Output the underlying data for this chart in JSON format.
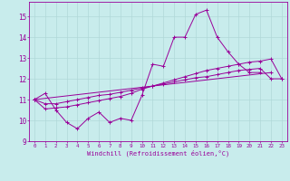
{
  "xlabel": "Windchill (Refroidissement éolien,°C)",
  "background_color": "#c8ecec",
  "grid_color": "#b0d8d8",
  "line_color": "#990099",
  "xlim": [
    -0.5,
    23.5
  ],
  "ylim": [
    9,
    15.7
  ],
  "yticks": [
    9,
    10,
    11,
    12,
    13,
    14,
    15
  ],
  "xticks": [
    0,
    1,
    2,
    3,
    4,
    5,
    6,
    7,
    8,
    9,
    10,
    11,
    12,
    13,
    14,
    15,
    16,
    17,
    18,
    19,
    20,
    21,
    22,
    23
  ],
  "series_main": [
    0,
    1,
    2,
    3,
    4,
    5,
    6,
    7,
    8,
    9,
    10,
    11,
    12,
    13,
    14,
    15,
    16,
    17,
    18,
    19,
    20,
    21
  ],
  "y_main": [
    11.0,
    11.3,
    10.5,
    9.9,
    9.6,
    10.1,
    10.4,
    9.9,
    10.1,
    10.0,
    11.2,
    12.7,
    12.6,
    14.0,
    14.0,
    15.1,
    15.3,
    14.0,
    13.3,
    12.7,
    12.3,
    12.3
  ],
  "series_trend1_x": [
    0,
    22
  ],
  "series_trend1_y": [
    11.0,
    12.3
  ],
  "series_trend2_x": [
    0,
    1,
    2,
    3,
    4,
    5,
    6,
    7,
    8,
    9,
    10,
    11,
    12,
    13,
    14,
    15,
    16,
    17,
    18,
    19,
    20,
    21,
    22,
    23
  ],
  "series_trend2_y": [
    11.0,
    10.55,
    10.6,
    10.65,
    10.75,
    10.85,
    10.95,
    11.05,
    11.15,
    11.3,
    11.5,
    11.65,
    11.8,
    11.95,
    12.1,
    12.25,
    12.4,
    12.5,
    12.6,
    12.7,
    12.8,
    12.85,
    12.95,
    12.0
  ],
  "series_trend3_x": [
    0,
    1,
    2,
    3,
    4,
    5,
    6,
    7,
    8,
    9,
    10,
    11,
    12,
    13,
    14,
    15,
    16,
    17,
    18,
    19,
    20,
    21,
    22,
    23
  ],
  "series_trend3_y": [
    11.0,
    10.8,
    10.8,
    10.9,
    11.0,
    11.1,
    11.2,
    11.25,
    11.35,
    11.45,
    11.55,
    11.65,
    11.75,
    11.85,
    11.95,
    12.05,
    12.1,
    12.2,
    12.3,
    12.4,
    12.45,
    12.5,
    12.0,
    12.0
  ]
}
